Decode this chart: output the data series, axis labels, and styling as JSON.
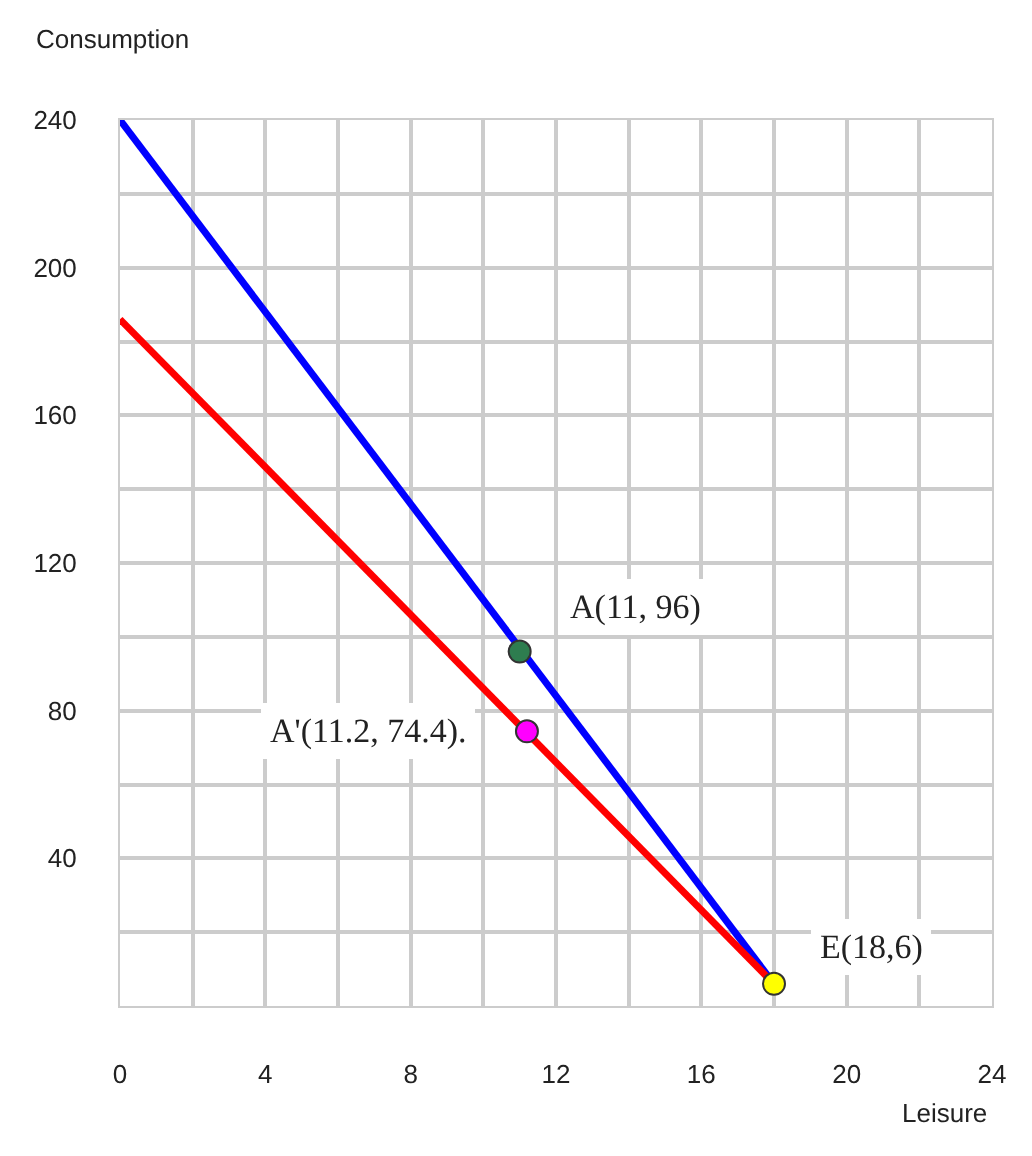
{
  "chart_data": {
    "type": "line",
    "xlabel": "Leisure",
    "ylabel": "Consumption",
    "xlim": [
      0,
      24
    ],
    "ylim": [
      0,
      240
    ],
    "xticks": [
      0,
      {
        "value": 2,
        "label": null
      },
      4,
      {
        "value": 6,
        "label": null
      },
      8,
      {
        "value": 10,
        "label": null
      },
      12,
      {
        "value": 14,
        "label": null
      },
      16,
      {
        "value": 18,
        "label": null
      },
      20,
      {
        "value": 22,
        "label": null
      },
      24
    ],
    "yticks": [
      {
        "value": 0,
        "label": null
      },
      {
        "value": 20,
        "label": null
      },
      40,
      {
        "value": 60,
        "label": null
      },
      80,
      {
        "value": 100,
        "label": null
      },
      120,
      {
        "value": 140,
        "label": null
      },
      160,
      {
        "value": 180,
        "label": null
      },
      200,
      {
        "value": 220,
        "label": null
      },
      240
    ],
    "grid": true,
    "legend": false,
    "marker": "none",
    "line_style": "solid",
    "series": [
      {
        "color": "#0000ff",
        "x": [
          0,
          18
        ],
        "values": [
          240,
          6
        ]
      },
      {
        "color": "#ff0000",
        "x": [
          0,
          18
        ],
        "values": [
          186,
          6
        ]
      },
      {
        "type": "scatter",
        "marker": "circle",
        "x": [
          11,
          11.2,
          18
        ],
        "values": [
          96,
          74.4,
          6
        ],
        "colors": [
          "#2e7d4f",
          "#ff00ff",
          "#ffff00"
        ]
      }
    ],
    "annotations": [
      {
        "text": "A(11, 96)",
        "x": 11,
        "y": 96
      },
      {
        "text": "A'(11.2, 74.4).",
        "x": 11.2,
        "y": 74.4
      },
      {
        "text": "E(18,6)",
        "x": 18,
        "y": 6
      }
    ]
  }
}
